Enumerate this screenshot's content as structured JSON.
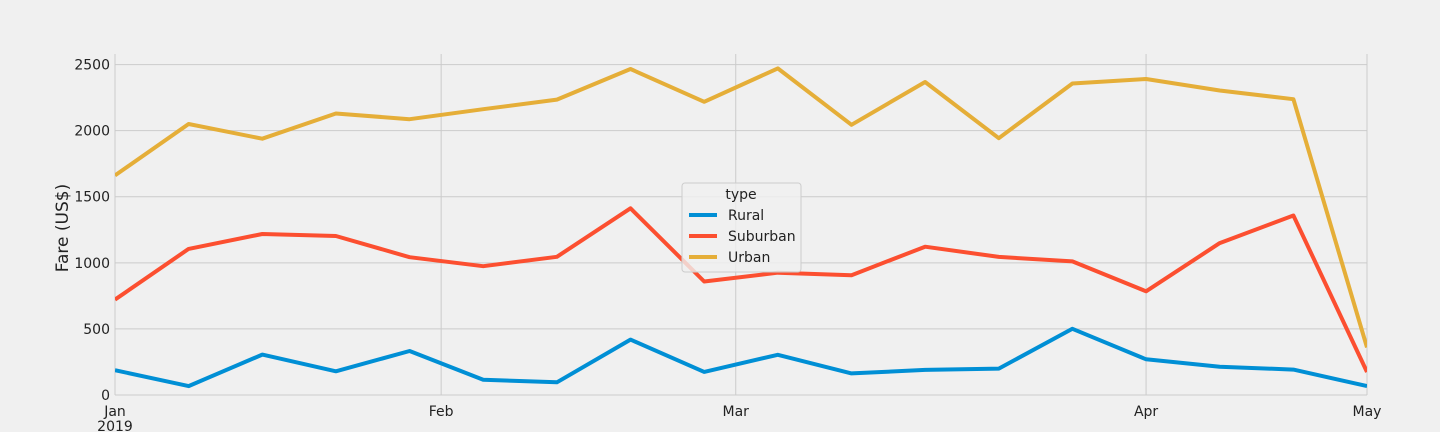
{
  "chart_data": {
    "type": "line",
    "title": "",
    "xlabel": "",
    "ylabel": "Fare (US$)",
    "ylim": [
      0,
      2580
    ],
    "yticks": [
      0,
      500,
      1000,
      1500,
      2000,
      2500
    ],
    "xlim": [
      "2019-01-06",
      "2019-05-05"
    ],
    "xticks": [
      {
        "x": "2019-01-06",
        "label": "Jan",
        "sublabel": "2019"
      },
      {
        "x": "2019-02-06",
        "label": "Feb",
        "sublabel": ""
      },
      {
        "x": "2019-03-06",
        "label": "Mar",
        "sublabel": ""
      },
      {
        "x": "2019-04-14",
        "label": "Apr",
        "sublabel": ""
      },
      {
        "x": "2019-05-05",
        "label": "May",
        "sublabel": ""
      }
    ],
    "x": [
      "2019-01-06",
      "2019-01-13",
      "2019-01-20",
      "2019-01-27",
      "2019-02-03",
      "2019-02-10",
      "2019-02-17",
      "2019-02-24",
      "2019-03-03",
      "2019-03-10",
      "2019-03-17",
      "2019-03-24",
      "2019-03-31",
      "2019-04-07",
      "2019-04-14",
      "2019-04-21",
      "2019-04-28",
      "2019-05-05"
    ],
    "grid": true,
    "legend": {
      "title": "type",
      "placement": "center"
    },
    "series": [
      {
        "name": "Rural",
        "color": "#008fd5",
        "values": [
          187.92,
          67.65,
          306.0,
          179.5,
          333.08,
          115.8,
          95.82,
          419.06,
          175.14,
          303.94,
          163.39,
          189.76,
          199.42,
          501.24,
          269.79,
          214.14,
          191.85,
          67.6
        ]
      },
      {
        "name": "Suburban",
        "color": "#fc4f30",
        "values": [
          721.6,
          1105.13,
          1218.2,
          1203.28,
          1042.79,
          974.34,
          1045.5,
          1412.74,
          858.46,
          925.27,
          906.2,
          1122.2,
          1045.06,
          1010.73,
          784.82,
          1149.27,
          1357.75,
          174.03
        ]
      },
      {
        "name": "Urban",
        "color": "#e5ae38",
        "values": [
          1661.68,
          2050.43,
          1939.02,
          2129.51,
          2086.94,
          2162.64,
          2235.07,
          2466.29,
          2218.2,
          2470.93,
          2044.42,
          2368.37,
          1942.77,
          2356.7,
          2390.7,
          2303.8,
          2238.29,
          360.0
        ]
      }
    ]
  }
}
